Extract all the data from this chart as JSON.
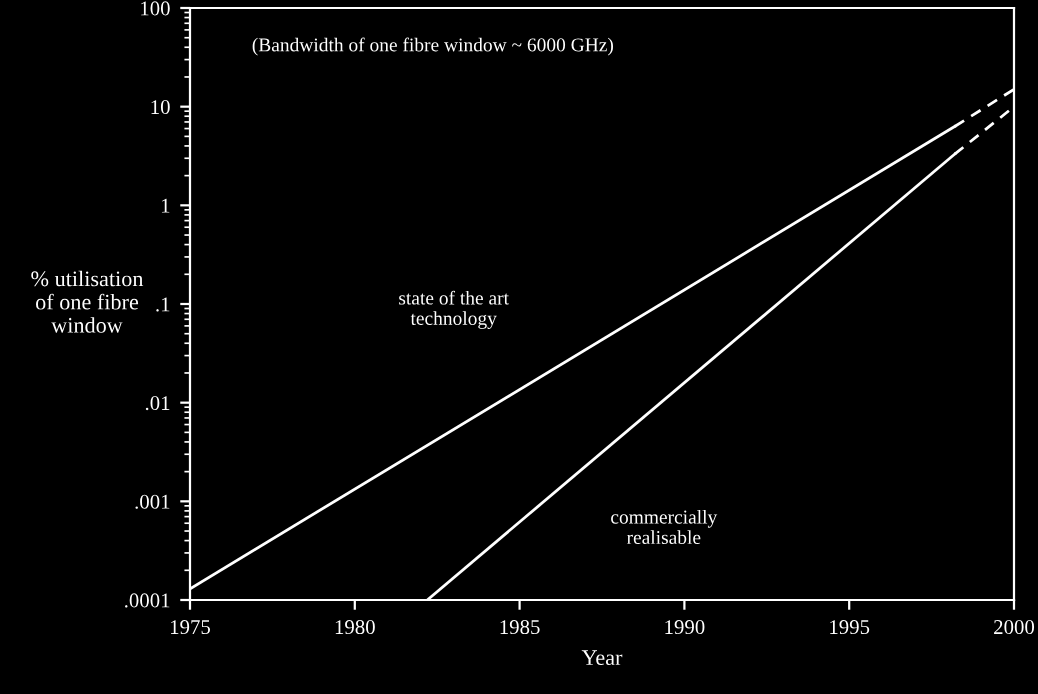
{
  "chart_data": {
    "type": "line",
    "xlabel": "Year",
    "ylabel": "% utilisation\nof one fibre\nwindow",
    "log": "y",
    "xlim": [
      1975,
      2000
    ],
    "ylim": [
      0.0001,
      100
    ],
    "xticks": [
      1975,
      1980,
      1985,
      1990,
      1995,
      2000
    ],
    "yticks": [
      {
        "value": 0.0001,
        "label": ".0001"
      },
      {
        "value": 0.001,
        "label": ".001"
      },
      {
        "value": 0.01,
        "label": ".01"
      },
      {
        "value": 0.1,
        "label": ".1"
      },
      {
        "value": 1,
        "label": "1"
      },
      {
        "value": 10,
        "label": "10"
      },
      {
        "value": 100,
        "label": "100"
      }
    ],
    "grid": false,
    "legend": false,
    "series": [
      {
        "color": "#ffffff",
        "line_style": "solid",
        "x": [
          1975,
          1998.2
        ],
        "values": [
          0.00013,
          6.3
        ]
      },
      {
        "color": "#ffffff",
        "line_style": "dashed",
        "x": [
          1998.2,
          2000
        ],
        "values": [
          6.3,
          15
        ]
      },
      {
        "color": "#ffffff",
        "line_style": "solid",
        "x": [
          1982.2,
          1998.2
        ],
        "values": [
          0.0001,
          3.3
        ]
      },
      {
        "color": "#ffffff",
        "line_style": "dashed",
        "x": [
          1998.2,
          2000
        ],
        "values": [
          3.3,
          10
        ]
      }
    ],
    "annotations": [
      "(Bandwidth of one fibre window ~ 6000 GHz)",
      "state of the art\ntechnology",
      "commercially\nrealisable"
    ]
  }
}
